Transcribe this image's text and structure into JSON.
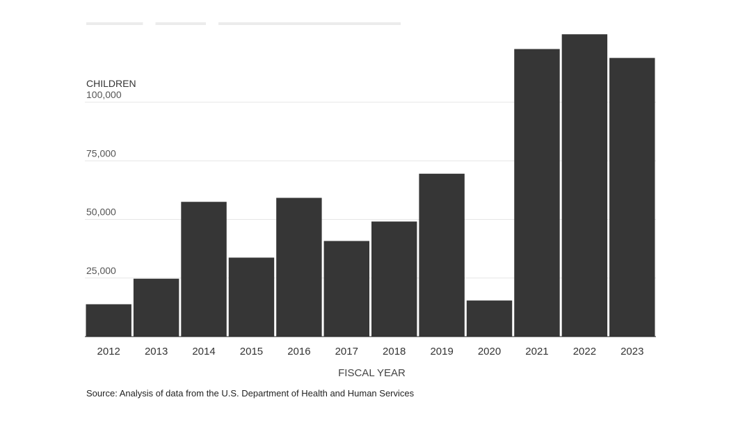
{
  "chart_data": {
    "type": "bar",
    "categories": [
      "2012",
      "2013",
      "2014",
      "2015",
      "2016",
      "2017",
      "2018",
      "2019",
      "2020",
      "2021",
      "2022",
      "2023"
    ],
    "values": [
      13800,
      24700,
      57500,
      33700,
      59200,
      40800,
      49100,
      69500,
      15400,
      122700,
      129000,
      118900
    ],
    "ylabel": "CHILDREN",
    "xlabel": "FISCAL YEAR",
    "yticks": [
      {
        "value": 25000,
        "label": "25,000"
      },
      {
        "value": 50000,
        "label": "50,000"
      },
      {
        "value": 75000,
        "label": "75,000"
      },
      {
        "value": 100000,
        "label": "100,000"
      }
    ],
    "ylim": [
      0,
      130000
    ],
    "grid": true,
    "bar_color": "#363636",
    "grid_color": "#e6e6e6",
    "source": "Source: Analysis of data from the U.S. Department of Health and Human Services"
  }
}
